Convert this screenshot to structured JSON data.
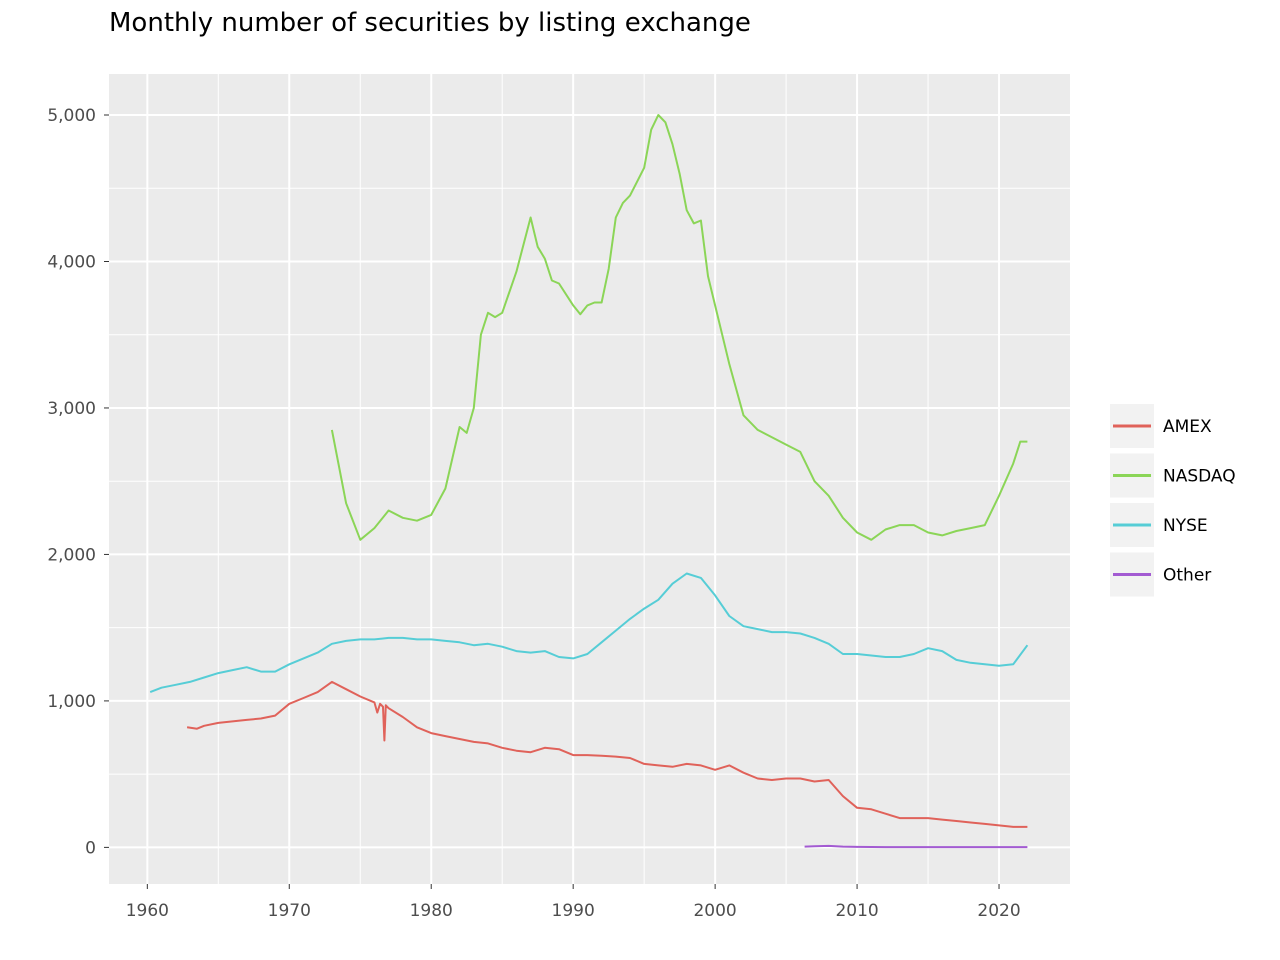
{
  "chart_data": {
    "type": "line",
    "title": "Monthly number of securities by listing exchange",
    "xlabel": "",
    "ylabel": "",
    "xlim": [
      1957.3,
      2025.0
    ],
    "ylim": [
      -250,
      5280
    ],
    "x_ticks": [
      1960,
      1970,
      1980,
      1990,
      2000,
      2010,
      2020
    ],
    "x_tick_labels": [
      "1960",
      "1970",
      "1980",
      "1990",
      "2000",
      "2010",
      "2020"
    ],
    "y_ticks": [
      0,
      1000,
      2000,
      3000,
      4000,
      5000
    ],
    "y_tick_labels": [
      "0",
      "1,000",
      "2,000",
      "3,000",
      "4,000",
      "5,000"
    ],
    "grid": true,
    "legend_position": "right",
    "series": [
      {
        "name": "AMEX",
        "color": "#E0625A",
        "x": [
          1962.8,
          1963.5,
          1964,
          1965,
          1966,
          1967,
          1968,
          1969,
          1970,
          1971,
          1972,
          1973,
          1974,
          1975,
          1976,
          1976.2,
          1976.4,
          1976.6,
          1976.7,
          1976.8,
          1977,
          1978,
          1979,
          1980,
          1981,
          1982,
          1983,
          1984,
          1985,
          1986,
          1987,
          1988,
          1989,
          1990,
          1991,
          1992,
          1993,
          1994,
          1995,
          1996,
          1997,
          1998,
          1999,
          2000,
          2001,
          2002,
          2003,
          2004,
          2005,
          2006,
          2007,
          2008,
          2009,
          2010,
          2011,
          2012,
          2013,
          2014,
          2015,
          2016,
          2017,
          2018,
          2019,
          2020,
          2021,
          2022
        ],
        "y": [
          820,
          810,
          830,
          850,
          860,
          870,
          880,
          900,
          980,
          1020,
          1060,
          1130,
          1080,
          1030,
          990,
          920,
          980,
          960,
          730,
          970,
          950,
          890,
          820,
          780,
          760,
          740,
          720,
          710,
          680,
          660,
          650,
          680,
          670,
          630,
          630,
          625,
          620,
          610,
          570,
          560,
          550,
          570,
          560,
          530,
          560,
          510,
          470,
          460,
          470,
          470,
          450,
          460,
          350,
          270,
          260,
          230,
          200,
          200,
          200,
          190,
          180,
          170,
          160,
          150,
          140,
          140
        ]
      },
      {
        "name": "NASDAQ",
        "color": "#8BD557",
        "x": [
          1973.0,
          1973.5,
          1974,
          1975,
          1976,
          1977,
          1978,
          1979,
          1980,
          1981,
          1982,
          1982.5,
          1983,
          1983.5,
          1984,
          1984.5,
          1985,
          1986,
          1987,
          1987.5,
          1988,
          1988.5,
          1989,
          1990,
          1990.5,
          1991,
          1991.5,
          1992,
          1992.5,
          1993,
          1993.5,
          1994,
          1995,
          1995.5,
          1996,
          1996.5,
          1997,
          1997.5,
          1998,
          1998.5,
          1999,
          1999.5,
          2000,
          2000.5,
          2001,
          2002,
          2003,
          2004,
          2005,
          2006,
          2007,
          2008,
          2009,
          2010,
          2011,
          2012,
          2013,
          2014,
          2015,
          2016,
          2017,
          2018,
          2019,
          2020,
          2021,
          2021.5,
          2022
        ],
        "y": [
          2850,
          2600,
          2350,
          2100,
          2180,
          2300,
          2250,
          2230,
          2270,
          2450,
          2870,
          2830,
          3000,
          3500,
          3650,
          3620,
          3650,
          3930,
          4300,
          4100,
          4020,
          3870,
          3850,
          3700,
          3640,
          3700,
          3720,
          3720,
          3950,
          4300,
          4400,
          4450,
          4640,
          4900,
          5000,
          4950,
          4800,
          4600,
          4350,
          4260,
          4280,
          3900,
          3700,
          3500,
          3300,
          2950,
          2850,
          2800,
          2750,
          2700,
          2500,
          2400,
          2250,
          2150,
          2100,
          2170,
          2200,
          2200,
          2150,
          2130,
          2160,
          2180,
          2200,
          2400,
          2620,
          2770,
          2770
        ]
      },
      {
        "name": "NYSE",
        "color": "#56CDD6",
        "x": [
          1960.2,
          1961,
          1962,
          1963,
          1964,
          1965,
          1966,
          1967,
          1968,
          1969,
          1970,
          1971,
          1972,
          1973,
          1974,
          1975,
          1976,
          1977,
          1978,
          1979,
          1980,
          1981,
          1982,
          1983,
          1984,
          1985,
          1986,
          1987,
          1988,
          1989,
          1990,
          1991,
          1992,
          1993,
          1994,
          1995,
          1996,
          1997,
          1998,
          1999,
          2000,
          2001,
          2002,
          2003,
          2004,
          2005,
          2006,
          2007,
          2008,
          2009,
          2010,
          2011,
          2012,
          2013,
          2014,
          2015,
          2016,
          2017,
          2018,
          2019,
          2020,
          2021,
          2022
        ],
        "y": [
          1060,
          1090,
          1110,
          1130,
          1160,
          1190,
          1210,
          1230,
          1200,
          1200,
          1250,
          1290,
          1330,
          1390,
          1410,
          1420,
          1420,
          1430,
          1430,
          1420,
          1420,
          1410,
          1400,
          1380,
          1390,
          1370,
          1340,
          1330,
          1340,
          1300,
          1290,
          1320,
          1400,
          1480,
          1560,
          1630,
          1690,
          1800,
          1870,
          1840,
          1720,
          1580,
          1510,
          1490,
          1470,
          1470,
          1460,
          1430,
          1390,
          1320,
          1320,
          1310,
          1300,
          1300,
          1320,
          1360,
          1340,
          1280,
          1260,
          1250,
          1240,
          1250,
          1380
        ]
      },
      {
        "name": "Other",
        "color": "#A35BD2",
        "x": [
          2006.3,
          2007,
          2008,
          2009,
          2010,
          2012,
          2015,
          2018,
          2020,
          2022
        ],
        "y": [
          5,
          8,
          10,
          5,
          3,
          2,
          2,
          2,
          2,
          2
        ]
      }
    ]
  }
}
